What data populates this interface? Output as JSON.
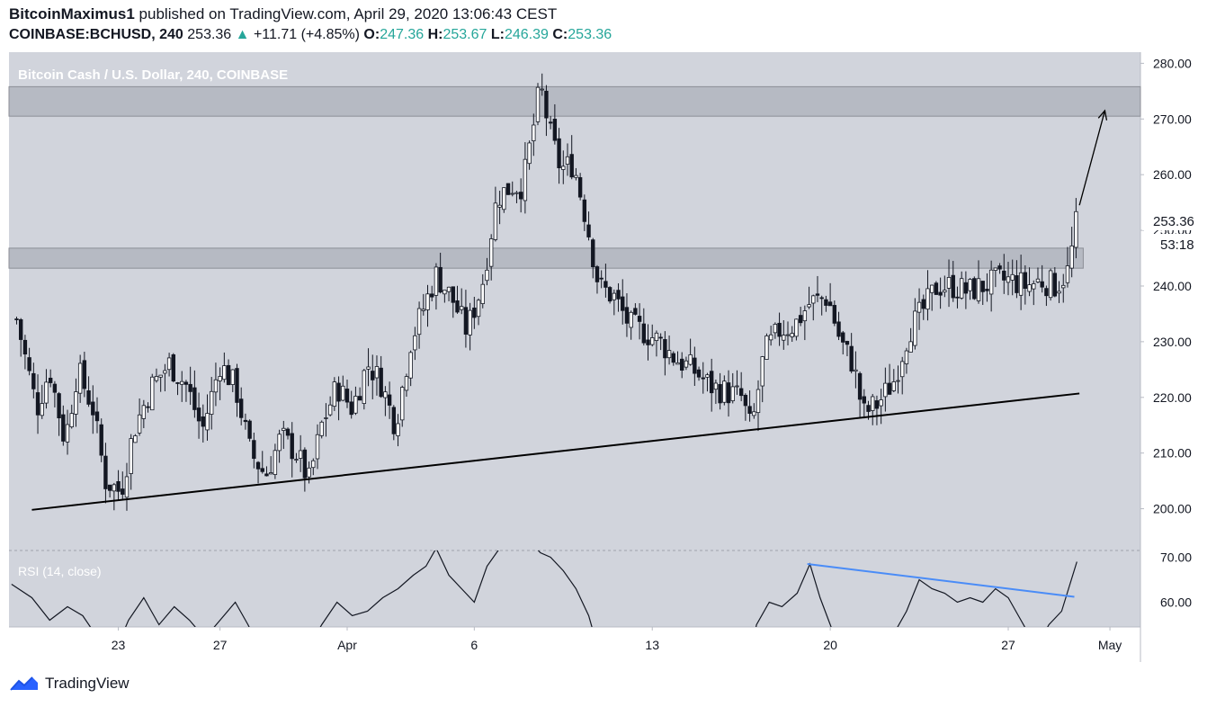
{
  "header": {
    "author": "BitcoinMaximus1",
    "published_text": "published on TradingView.com, April 29, 2020 13:06:43 CEST",
    "symbol": "COINBASE:BCHUSD, 240",
    "last": "253.36",
    "change_arrow": "▲",
    "change": "+11.71 (+4.85%)",
    "o_label": "O:",
    "o": "247.36",
    "h_label": "H:",
    "h": "253.67",
    "l_label": "L:",
    "l": "246.39",
    "c_label": "C:",
    "c": "253.36"
  },
  "footer": {
    "brand": "TradingView",
    "logo_icon": "tradingview-logo-icon"
  },
  "colors": {
    "plot_bg": "#d1d4dc",
    "zone": "#b2b5be",
    "candle": "#131722",
    "rsi_divergence": "#4a8cf7",
    "up": "#26a69a"
  },
  "chart_data": [
    {
      "type": "candlestick",
      "title": "Bitcoin Cash / U.S. Dollar, 240, COINBASE",
      "price_scale": {
        "ticks": [
          "200.00",
          "210.00",
          "220.00",
          "230.00",
          "240.00",
          "250.00",
          "260.00",
          "270.00",
          "280.00"
        ],
        "range": [
          192.5,
          282
        ]
      },
      "last_price_label": "253.36",
      "countdown_label": "53:18",
      "x_axis": {
        "ticks": [
          {
            "label": "23",
            "day": 23.0
          },
          {
            "label": "27",
            "day": 27.0
          },
          {
            "label": "Apr",
            "day": 32.0
          },
          {
            "label": "6",
            "day": 37.0
          },
          {
            "label": "13",
            "day": 44.0
          },
          {
            "label": "20",
            "day": 51.0
          },
          {
            "label": "27",
            "day": 58.0
          },
          {
            "label": "May",
            "day": 62.0
          }
        ],
        "day_unit": "days since Mar 0, 2020"
      },
      "resistance_zones": [
        [
          270.5,
          275.8
        ],
        [
          243.2,
          246.8
        ]
      ],
      "trendline": [
        {
          "day": 19.6,
          "price": 199.8
        },
        {
          "day": 60.8,
          "price": 220.7
        }
      ],
      "arrow": [
        {
          "day": 60.8,
          "price": 254.5
        },
        {
          "day": 61.8,
          "price": 271.5
        }
      ],
      "close_anchors": [
        [
          19.0,
          234
        ],
        [
          19.8,
          218
        ],
        [
          20.3,
          225
        ],
        [
          20.9,
          212
        ],
        [
          21.4,
          225
        ],
        [
          22.0,
          218
        ],
        [
          22.5,
          205
        ],
        [
          23.1,
          203
        ],
        [
          23.6,
          214
        ],
        [
          24.3,
          222
        ],
        [
          25.0,
          226
        ],
        [
          25.7,
          222
        ],
        [
          26.3,
          214
        ],
        [
          27.0,
          226
        ],
        [
          27.6,
          222
        ],
        [
          28.2,
          210
        ],
        [
          28.8,
          206
        ],
        [
          29.4,
          213
        ],
        [
          30.0,
          210
        ],
        [
          30.5,
          205
        ],
        [
          31.0,
          215
        ],
        [
          31.6,
          222
        ],
        [
          32.2,
          218
        ],
        [
          32.8,
          226
        ],
        [
          33.3,
          223
        ],
        [
          33.9,
          215
        ],
        [
          34.5,
          230
        ],
        [
          35.0,
          236
        ],
        [
          35.5,
          242
        ],
        [
          36.1,
          238
        ],
        [
          36.7,
          232
        ],
        [
          37.3,
          240
        ],
        [
          37.9,
          256
        ],
        [
          38.5,
          258
        ],
        [
          38.9,
          258
        ],
        [
          39.3,
          268
        ],
        [
          39.6,
          276
        ],
        [
          40.0,
          267
        ],
        [
          40.4,
          261
        ],
        [
          40.9,
          262
        ],
        [
          41.4,
          252
        ],
        [
          41.9,
          240
        ],
        [
          42.5,
          238
        ],
        [
          43.1,
          233
        ],
        [
          43.6,
          232
        ],
        [
          44.3,
          230
        ],
        [
          44.9,
          227
        ],
        [
          45.6,
          225
        ],
        [
          46.3,
          222
        ],
        [
          46.9,
          221
        ],
        [
          47.5,
          220
        ],
        [
          47.9,
          214
        ],
        [
          48.4,
          228
        ],
        [
          49.0,
          232
        ],
        [
          49.6,
          233
        ],
        [
          50.2,
          237
        ],
        [
          50.9,
          238
        ],
        [
          51.4,
          230
        ],
        [
          51.9,
          226
        ],
        [
          52.3,
          217
        ],
        [
          52.9,
          219
        ],
        [
          53.5,
          223
        ],
        [
          54.1,
          232
        ],
        [
          54.7,
          236
        ],
        [
          55.2,
          240
        ],
        [
          55.8,
          240
        ],
        [
          56.4,
          239
        ],
        [
          57.0,
          240
        ],
        [
          57.6,
          241
        ],
        [
          58.1,
          241
        ],
        [
          58.7,
          240
        ],
        [
          59.3,
          241
        ],
        [
          59.9,
          240
        ],
        [
          60.4,
          243
        ],
        [
          60.7,
          253.36
        ]
      ]
    },
    {
      "type": "line",
      "title": "RSI (14, close)",
      "ticks": [
        "60.00",
        "70.00"
      ],
      "range": [
        54.5,
        71.5
      ],
      "divergence_line": [
        {
          "day": 50.1,
          "value": 68.5
        },
        {
          "day": 60.6,
          "value": 61.2
        }
      ],
      "series": [
        [
          18.8,
          64
        ],
        [
          19.6,
          61
        ],
        [
          20.3,
          56
        ],
        [
          21.0,
          59
        ],
        [
          21.6,
          57
        ],
        [
          22.2,
          52
        ],
        [
          22.8,
          48
        ],
        [
          23.4,
          56
        ],
        [
          24.0,
          61
        ],
        [
          24.6,
          55
        ],
        [
          25.2,
          59
        ],
        [
          25.8,
          56
        ],
        [
          26.4,
          52
        ],
        [
          27.0,
          56
        ],
        [
          27.6,
          60
        ],
        [
          28.1,
          55
        ],
        [
          28.7,
          48
        ],
        [
          29.3,
          46
        ],
        [
          29.9,
          50
        ],
        [
          30.5,
          50
        ],
        [
          31.0,
          55
        ],
        [
          31.6,
          60
        ],
        [
          32.2,
          57
        ],
        [
          32.8,
          58
        ],
        [
          33.4,
          61
        ],
        [
          34.0,
          63
        ],
        [
          34.6,
          66
        ],
        [
          35.1,
          68
        ],
        [
          35.5,
          72
        ],
        [
          36.0,
          66
        ],
        [
          36.5,
          63
        ],
        [
          37.0,
          60
        ],
        [
          37.5,
          68
        ],
        [
          38.0,
          72
        ],
        [
          38.6,
          72
        ],
        [
          39.1,
          74
        ],
        [
          39.6,
          71
        ],
        [
          40.0,
          70
        ],
        [
          40.5,
          67
        ],
        [
          41.0,
          63
        ],
        [
          41.5,
          57
        ],
        [
          42.0,
          47
        ],
        [
          42.6,
          46
        ],
        [
          43.2,
          48
        ],
        [
          43.7,
          44
        ],
        [
          44.2,
          45
        ],
        [
          44.8,
          45
        ],
        [
          45.4,
          44
        ],
        [
          46.0,
          43
        ],
        [
          46.6,
          44
        ],
        [
          47.2,
          40
        ],
        [
          47.6,
          42
        ],
        [
          48.1,
          55
        ],
        [
          48.6,
          60
        ],
        [
          49.1,
          59
        ],
        [
          49.7,
          62
        ],
        [
          50.2,
          68.5
        ],
        [
          50.6,
          61
        ],
        [
          51.0,
          55
        ],
        [
          51.4,
          49
        ],
        [
          51.9,
          46
        ],
        [
          52.4,
          45
        ],
        [
          52.9,
          47
        ],
        [
          53.4,
          52
        ],
        [
          54.0,
          58
        ],
        [
          54.5,
          65
        ],
        [
          55.0,
          63
        ],
        [
          55.5,
          62
        ],
        [
          56.0,
          60
        ],
        [
          56.5,
          61
        ],
        [
          57.0,
          60
        ],
        [
          57.5,
          63
        ],
        [
          58.0,
          61
        ],
        [
          58.5,
          56
        ],
        [
          59.1,
          50
        ],
        [
          59.6,
          55
        ],
        [
          60.1,
          58
        ],
        [
          60.7,
          69
        ]
      ]
    }
  ]
}
